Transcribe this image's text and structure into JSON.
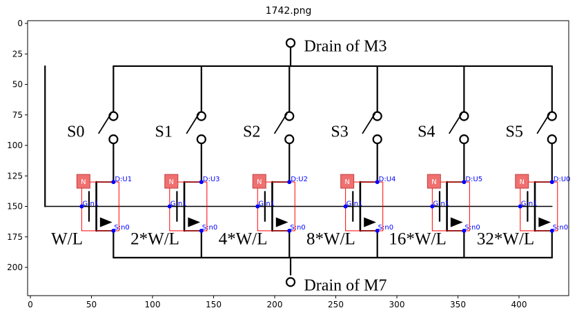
{
  "title": "1742.png",
  "x_ticks": [
    "0",
    "50",
    "100",
    "150",
    "200",
    "250",
    "300",
    "350",
    "400"
  ],
  "y_ticks": [
    "0",
    "25",
    "50",
    "75",
    "100",
    "125",
    "150",
    "175",
    "200"
  ],
  "labels": {
    "drain_top": "Drain of M3",
    "drain_bottom": "Drain of M7"
  },
  "switches": [
    "S0",
    "S1",
    "S2",
    "S3",
    "S4",
    "S5"
  ],
  "transistors": [
    {
      "ratio": "W/L",
      "badge": "N",
      "d": "D:U1",
      "g": "G:n1",
      "s": "S:n0"
    },
    {
      "ratio": "2*W/L",
      "badge": "N",
      "d": "D:U3",
      "g": "G:n1",
      "s": "S:n0"
    },
    {
      "ratio": "4*W/L",
      "badge": "N",
      "d": "D:U2",
      "g": "G:n1",
      "s": "S:n0"
    },
    {
      "ratio": "8*W/L",
      "badge": "N",
      "d": "D:U4",
      "g": "G:n1",
      "s": "S:n0"
    },
    {
      "ratio": "16*W/L",
      "badge": "N",
      "d": "D:U5",
      "g": "G:n1",
      "s": "S:n0"
    },
    {
      "ratio": "32*W/L",
      "badge": "N",
      "d": "D:U0",
      "g": "G:n1",
      "s": "S:n0"
    }
  ],
  "colors": {
    "annotation_box": "#ff0000",
    "badge": "#f07070",
    "pin": "#0000ff"
  }
}
